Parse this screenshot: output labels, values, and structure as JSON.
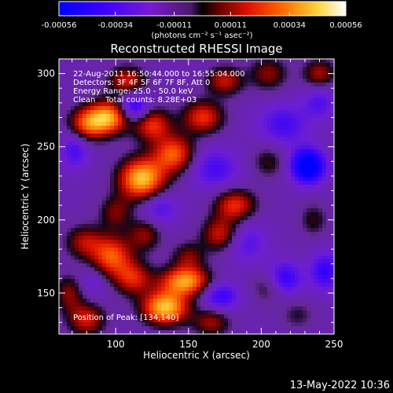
{
  "chart_data": {
    "type": "heatmap",
    "title": "Reconstructed RHESSI Image",
    "xlabel": "Heliocentric X (arcsec)",
    "ylabel": "Heliocentric Y (arcsec)",
    "xlim": [
      61,
      250
    ],
    "ylim": [
      122,
      310
    ],
    "x_ticks": [
      100,
      150,
      200,
      250
    ],
    "y_ticks": [
      150,
      200,
      250,
      300
    ],
    "colorbar": {
      "ticks": [
        "-0.00056",
        "-0.00034",
        "-0.00011",
        "0.00011",
        "0.00034",
        "0.00056"
      ],
      "units_label": "(photons cm⁻² s⁻¹ asec⁻²)",
      "range": [
        -0.00056,
        0.00056
      ]
    },
    "annotations": [
      "22-Aug-2011 16:50:44.000 to 16:55:04.000",
      "Detectors: 3F 4F 5F 6F 7F 8F, Att 0",
      "Energy Range: 25.0 - 50.0 keV",
      "Clean    Total counts: 8.28E+03"
    ],
    "peak_label": "Position of Peak: [134,140]",
    "peak_position": [
      134,
      140
    ],
    "bright_features": [
      {
        "x": 95,
        "y": 270,
        "amp": 0.0005,
        "sx": 10,
        "sy": 8
      },
      {
        "x": 80,
        "y": 265,
        "amp": 0.00035,
        "sx": 9,
        "sy": 8
      },
      {
        "x": 108,
        "y": 295,
        "amp": 0.0003,
        "sx": 9,
        "sy": 7
      },
      {
        "x": 125,
        "y": 265,
        "amp": 0.00034,
        "sx": 9,
        "sy": 8
      },
      {
        "x": 118,
        "y": 228,
        "amp": 0.00056,
        "sx": 11,
        "sy": 10
      },
      {
        "x": 140,
        "y": 245,
        "amp": 0.0004,
        "sx": 10,
        "sy": 9
      },
      {
        "x": 160,
        "y": 270,
        "amp": 0.00034,
        "sx": 10,
        "sy": 8
      },
      {
        "x": 175,
        "y": 295,
        "amp": 0.00028,
        "sx": 9,
        "sy": 7
      },
      {
        "x": 205,
        "y": 300,
        "amp": 0.00022,
        "sx": 9,
        "sy": 8
      },
      {
        "x": 240,
        "y": 300,
        "amp": 0.00025,
        "sx": 8,
        "sy": 7
      },
      {
        "x": 100,
        "y": 205,
        "amp": 0.0002,
        "sx": 8,
        "sy": 8
      },
      {
        "x": 78,
        "y": 185,
        "amp": 0.00024,
        "sx": 9,
        "sy": 8
      },
      {
        "x": 97,
        "y": 175,
        "amp": 0.0004,
        "sx": 10,
        "sy": 10
      },
      {
        "x": 120,
        "y": 190,
        "amp": 0.00022,
        "sx": 8,
        "sy": 8
      },
      {
        "x": 182,
        "y": 210,
        "amp": 0.00034,
        "sx": 10,
        "sy": 8
      },
      {
        "x": 172,
        "y": 190,
        "amp": 0.0003,
        "sx": 9,
        "sy": 8
      },
      {
        "x": 150,
        "y": 175,
        "amp": 0.0002,
        "sx": 8,
        "sy": 7
      },
      {
        "x": 134,
        "y": 140,
        "amp": 0.00056,
        "sx": 11,
        "sy": 8
      },
      {
        "x": 148,
        "y": 158,
        "amp": 0.0005,
        "sx": 12,
        "sy": 7
      },
      {
        "x": 112,
        "y": 160,
        "amp": 0.0003,
        "sx": 9,
        "sy": 8
      },
      {
        "x": 80,
        "y": 132,
        "amp": 0.0003,
        "sx": 9,
        "sy": 8
      },
      {
        "x": 68,
        "y": 150,
        "amp": 0.00022,
        "sx": 7,
        "sy": 9
      },
      {
        "x": 166,
        "y": 130,
        "amp": 0.00024,
        "sx": 9,
        "sy": 7
      },
      {
        "x": 205,
        "y": 155,
        "amp": 0.00018,
        "sx": 8,
        "sy": 8
      },
      {
        "x": 205,
        "y": 240,
        "amp": 0.00016,
        "sx": 8,
        "sy": 8
      },
      {
        "x": 236,
        "y": 200,
        "amp": 0.00015,
        "sx": 7,
        "sy": 8
      },
      {
        "x": 225,
        "y": 135,
        "amp": 0.00012,
        "sx": 8,
        "sy": 7
      }
    ],
    "dark_features": [
      {
        "x": 232,
        "y": 237,
        "amp": -0.00056,
        "sx": 8,
        "sy": 8
      },
      {
        "x": 113,
        "y": 277,
        "amp": -0.00034,
        "sx": 7,
        "sy": 7
      },
      {
        "x": 168,
        "y": 235,
        "amp": -0.00022,
        "sx": 12,
        "sy": 10
      },
      {
        "x": 215,
        "y": 265,
        "amp": -0.00022,
        "sx": 12,
        "sy": 10
      },
      {
        "x": 215,
        "y": 160,
        "amp": -0.0003,
        "sx": 9,
        "sy": 8
      },
      {
        "x": 244,
        "y": 165,
        "amp": -0.00028,
        "sx": 7,
        "sy": 9
      },
      {
        "x": 172,
        "y": 148,
        "amp": -0.00028,
        "sx": 9,
        "sy": 7
      },
      {
        "x": 130,
        "y": 208,
        "amp": -0.0002,
        "sx": 9,
        "sy": 8
      },
      {
        "x": 72,
        "y": 248,
        "amp": -0.00022,
        "sx": 7,
        "sy": 9
      },
      {
        "x": 240,
        "y": 280,
        "amp": -0.00018,
        "sx": 8,
        "sy": 8
      },
      {
        "x": 190,
        "y": 185,
        "amp": -0.00018,
        "sx": 10,
        "sy": 10
      },
      {
        "x": 85,
        "y": 158,
        "amp": -0.00012,
        "sx": 8,
        "sy": 8
      }
    ]
  },
  "footer": {
    "date_stamp": "13-May-2022 10:36"
  }
}
